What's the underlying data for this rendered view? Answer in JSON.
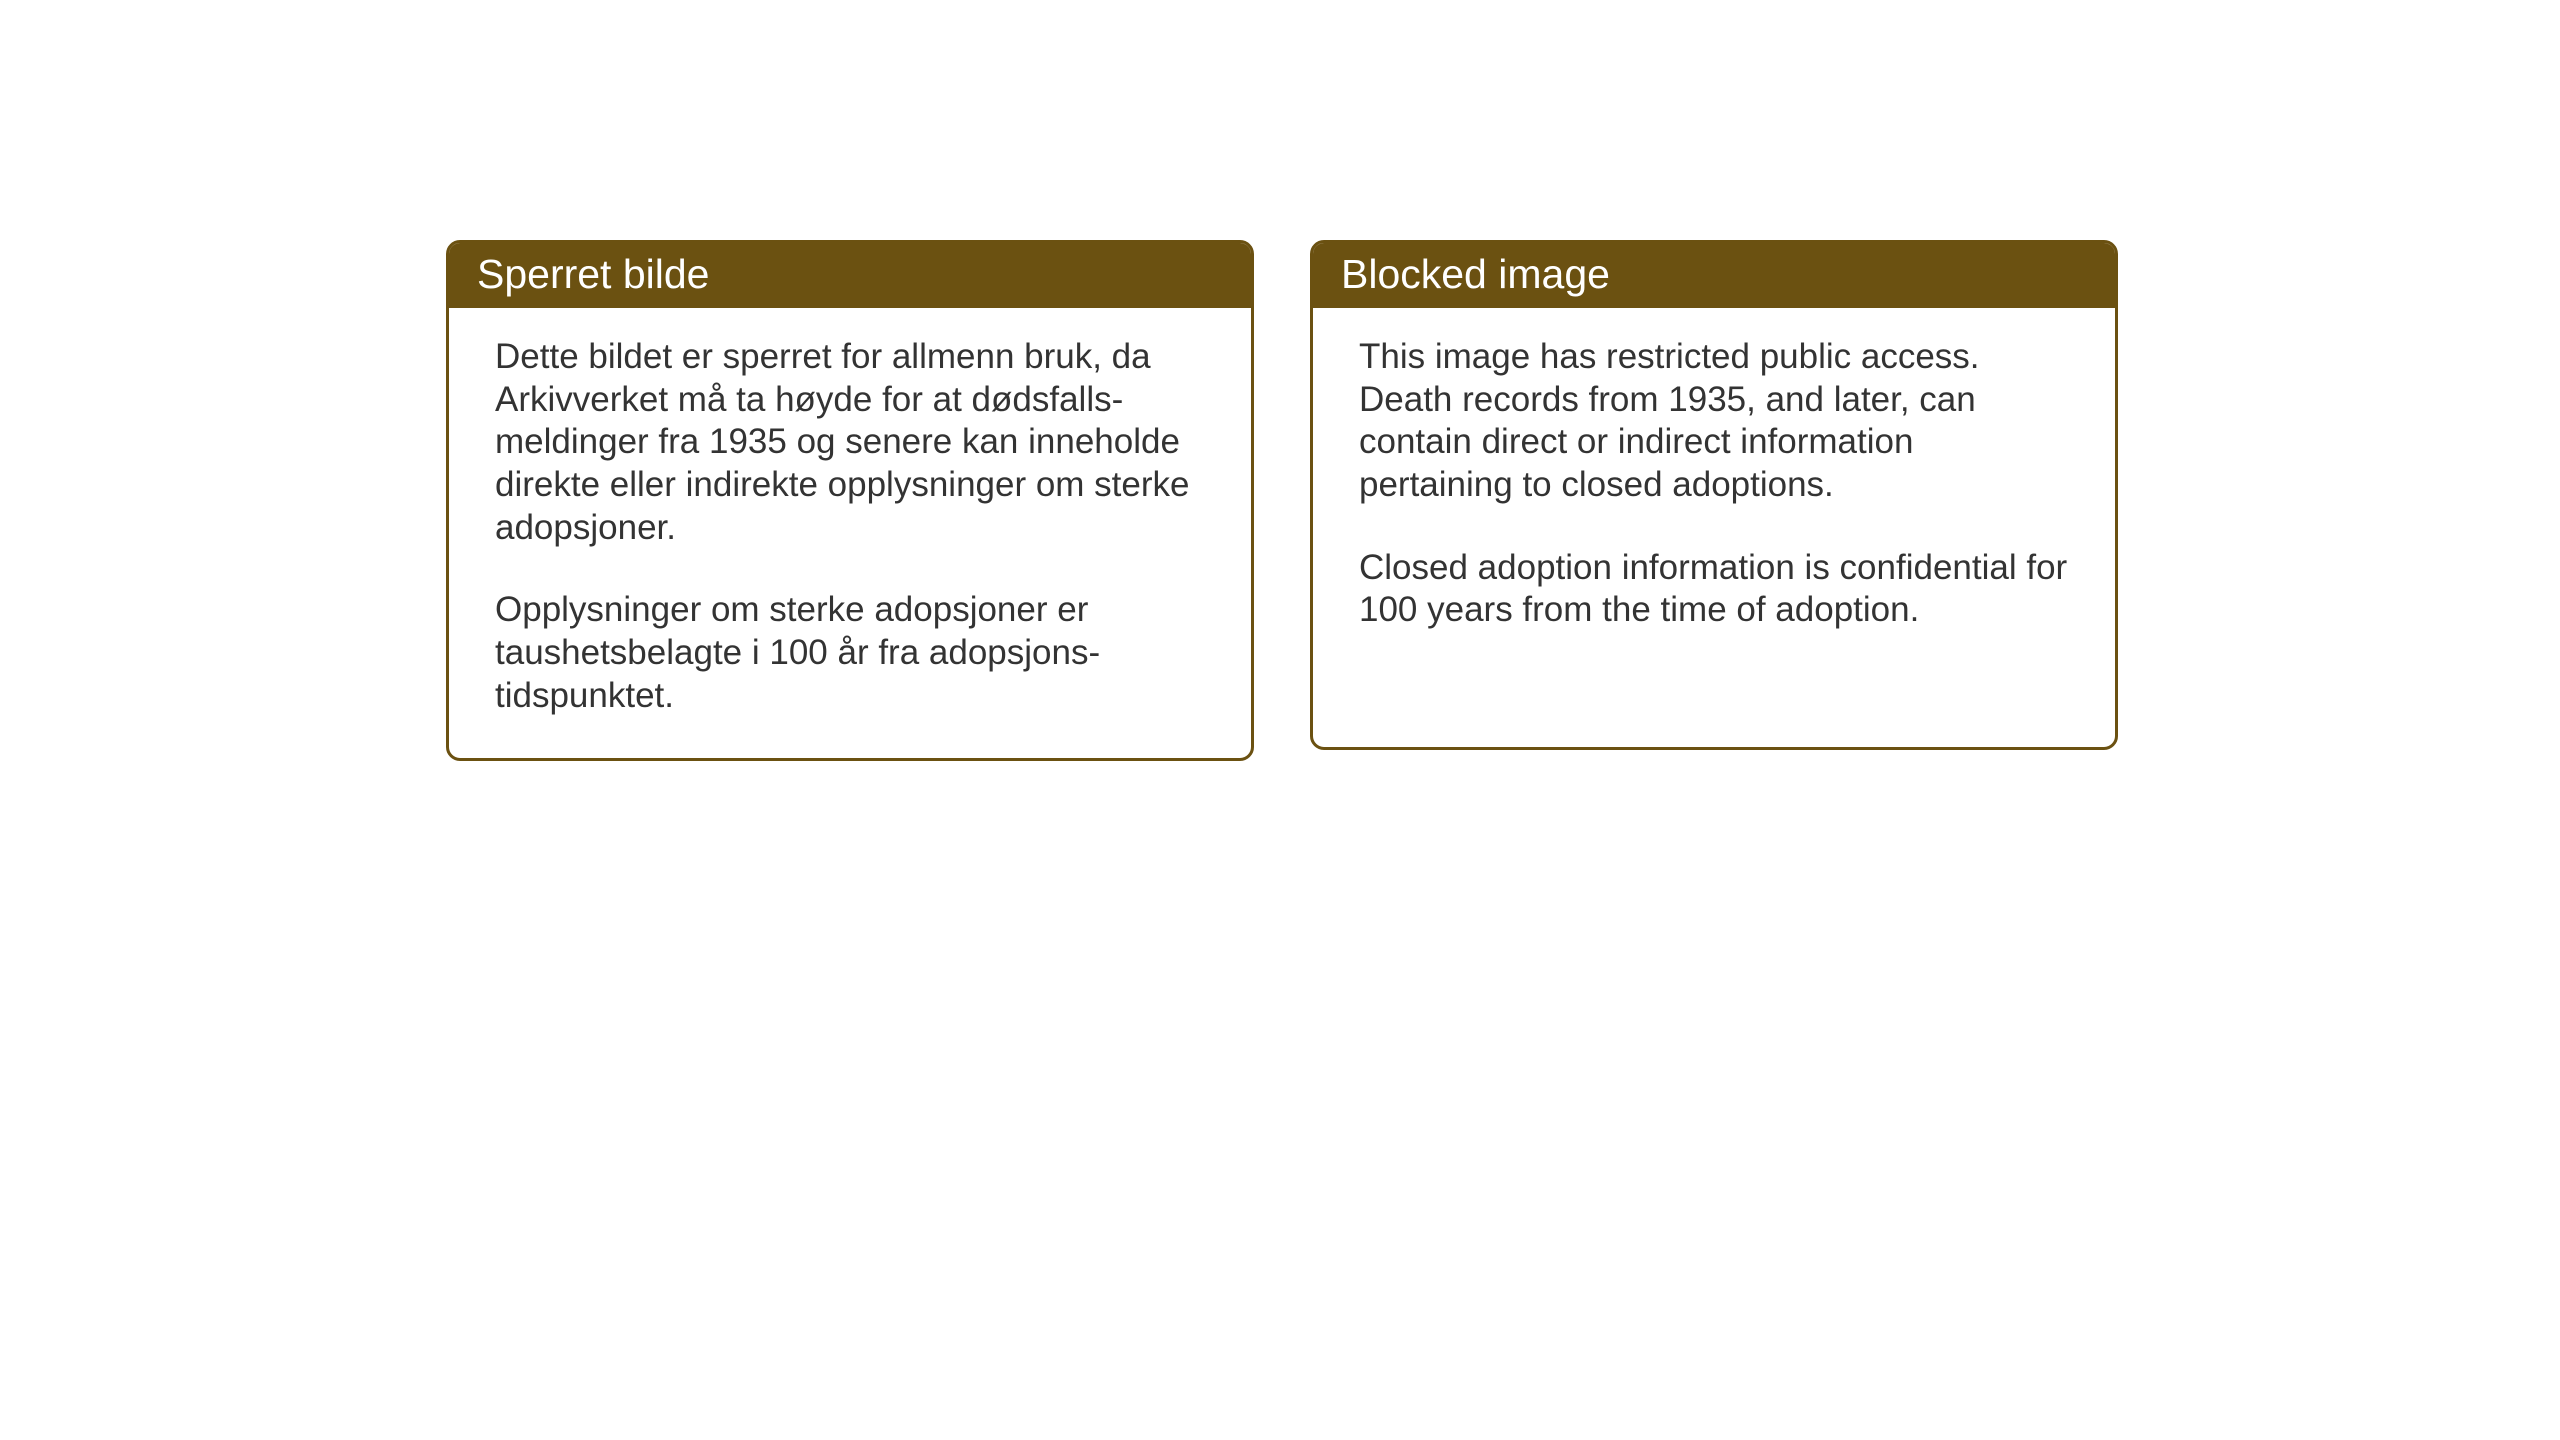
{
  "notices": {
    "norwegian": {
      "title": "Sperret bilde",
      "paragraph1": "Dette bildet er sperret for allmenn bruk, da Arkivverket må ta høyde for at dødsfalls-meldinger fra 1935 og senere kan inneholde direkte eller indirekte opplysninger om sterke adopsjoner.",
      "paragraph2": "Opplysninger om sterke adopsjoner er taushetsbelagte i 100 år fra adopsjons-tidspunktet."
    },
    "english": {
      "title": "Blocked image",
      "paragraph1": "This image has restricted public access. Death records from 1935, and later, can contain direct or indirect information pertaining to closed adoptions.",
      "paragraph2": "Closed adoption information is confidential for 100 years from the time of adoption."
    }
  },
  "styling": {
    "header_bg_color": "#6b5111",
    "header_text_color": "#ffffff",
    "border_color": "#6b5111",
    "body_bg_color": "#ffffff",
    "body_text_color": "#333333",
    "page_bg_color": "#ffffff",
    "title_fontsize": 41,
    "body_fontsize": 35,
    "border_radius": 14,
    "border_width": 3
  }
}
